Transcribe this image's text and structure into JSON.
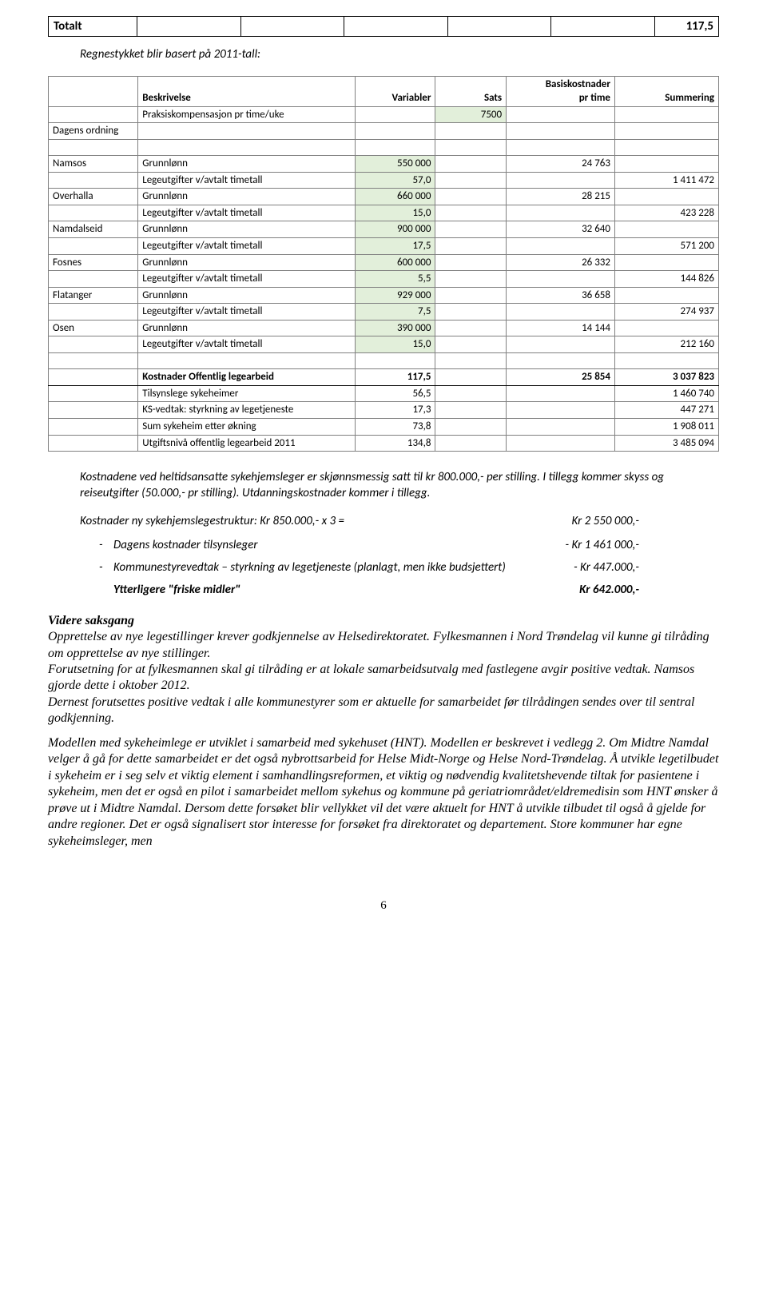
{
  "totalt": {
    "label": "Totalt",
    "value": "117,5"
  },
  "intro": "Regnestykket blir basert på 2011-tall:",
  "calc_table": {
    "headers": [
      "",
      "Beskrivelse",
      "Variabler",
      "Sats",
      "Basiskostnader pr time",
      "Summering"
    ],
    "col_widths": [
      "95px",
      "230px",
      "85px",
      "75px",
      "115px",
      "110px"
    ],
    "rows": [
      {
        "c": [
          "",
          "Praksiskompensasjon pr time/uke",
          "",
          "7500",
          "",
          ""
        ],
        "hl": [
          false,
          false,
          false,
          true,
          false,
          false
        ]
      },
      {
        "c": [
          "Dagens ordning",
          "",
          "",
          "",
          "",
          ""
        ]
      },
      {
        "spacer": true
      },
      {
        "c": [
          "Namsos",
          "Grunnlønn",
          "550 000",
          "",
          "24 763",
          ""
        ],
        "hl": [
          false,
          false,
          true,
          false,
          false,
          false
        ]
      },
      {
        "c": [
          "",
          "Legeutgifter v/avtalt timetall",
          "57,0",
          "",
          "",
          "1 411 472"
        ],
        "hl": [
          false,
          false,
          true,
          false,
          false,
          false
        ]
      },
      {
        "c": [
          "Overhalla",
          "Grunnlønn",
          "660 000",
          "",
          "28 215",
          ""
        ],
        "hl": [
          false,
          false,
          true,
          false,
          false,
          false
        ]
      },
      {
        "c": [
          "",
          "Legeutgifter v/avtalt timetall",
          "15,0",
          "",
          "",
          "423 228"
        ],
        "hl": [
          false,
          false,
          true,
          false,
          false,
          false
        ]
      },
      {
        "c": [
          "Namdalseid",
          "Grunnlønn",
          "900 000",
          "",
          "32 640",
          ""
        ],
        "hl": [
          false,
          false,
          true,
          false,
          false,
          false
        ]
      },
      {
        "c": [
          "",
          "Legeutgifter v/avtalt timetall",
          "17,5",
          "",
          "",
          "571 200"
        ],
        "hl": [
          false,
          false,
          true,
          false,
          false,
          false
        ]
      },
      {
        "c": [
          "Fosnes",
          "Grunnlønn",
          "600 000",
          "",
          "26 332",
          ""
        ],
        "hl": [
          false,
          false,
          true,
          false,
          false,
          false
        ]
      },
      {
        "c": [
          "",
          "Legeutgifter v/avtalt timetall",
          "5,5",
          "",
          "",
          "144 826"
        ],
        "hl": [
          false,
          false,
          true,
          false,
          false,
          false
        ]
      },
      {
        "c": [
          "Flatanger",
          "Grunnlønn",
          "929 000",
          "",
          "36 658",
          ""
        ],
        "hl": [
          false,
          false,
          true,
          false,
          false,
          false
        ]
      },
      {
        "c": [
          "",
          "Legeutgifter v/avtalt timetall",
          "7,5",
          "",
          "",
          "274 937"
        ],
        "hl": [
          false,
          false,
          true,
          false,
          false,
          false
        ]
      },
      {
        "c": [
          "Osen",
          "Grunnlønn",
          "390 000",
          "",
          "14 144",
          ""
        ],
        "hl": [
          false,
          false,
          true,
          false,
          false,
          false
        ]
      },
      {
        "c": [
          "",
          "Legeutgifter v/avtalt timetall",
          "15,0",
          "",
          "",
          "212 160"
        ],
        "hl": [
          false,
          false,
          true,
          false,
          false,
          false
        ]
      },
      {
        "spacer": true
      },
      {
        "c": [
          "",
          "Kostnader Offentlig legearbeid",
          "117,5",
          "",
          "25 854",
          "3 037 823"
        ],
        "bold": true
      },
      {
        "c": [
          "",
          "Tilsynslege sykeheimer",
          "56,5",
          "",
          "",
          "1 460 740"
        ]
      },
      {
        "c": [
          "",
          "KS-vedtak: styrkning av legetjeneste",
          "17,3",
          "",
          "",
          "447 271"
        ]
      },
      {
        "c": [
          "",
          "Sum sykeheim etter økning",
          "73,8",
          "",
          "",
          "1 908 011"
        ]
      },
      {
        "c": [
          "",
          "Utgiftsnivå offentlig legearbeid 2011",
          "134,8",
          "",
          "",
          "3 485 094"
        ]
      }
    ]
  },
  "narrative1": {
    "p1": "Kostnadene ved heltidsansatte sykehjemsleger er skjønnsmessig satt til kr 800.000,- per stilling. I tillegg kommer skyss og reiseutgifter (50.000,- pr stilling). Utdanningskostnader kommer i tillegg.",
    "cost_title_l": "Kostnader ny sykehjemslegestruktur: Kr 850.000,- x 3     =",
    "cost_title_r": "Kr 2 550 000,-",
    "items": [
      {
        "txt": "Dagens kostnader tilsynsleger",
        "amt": "- Kr 1 461 000,-"
      },
      {
        "txt": "Kommunestyrevedtak – styrkning av legetjeneste (planlagt, men ikke budsjettert)",
        "amt": "- Kr 447.000,-"
      }
    ],
    "final_l": "Ytterligere \"friske midler\"",
    "final_r": "Kr 642.000,-"
  },
  "prose": {
    "hdr": "Videre saksgang",
    "p1": "Opprettelse av nye legestillinger krever godkjennelse av Helsedirektoratet. Fylkesmannen i Nord Trøndelag vil kunne gi tilråding om opprettelse av nye stillinger.",
    "p2": "Forutsetning for at fylkesmannen skal gi tilråding er at lokale samarbeidsutvalg med fastlegene avgir positive vedtak. Namsos gjorde dette i oktober 2012.",
    "p3": "Dernest forutsettes positive vedtak i alle kommunestyrer som er aktuelle for samarbeidet før tilrådingen sendes over til sentral godkjenning.",
    "p4": "Modellen med sykeheimlege er utviklet i samarbeid med sykehuset (HNT). Modellen er beskrevet i vedlegg 2. Om Midtre Namdal velger å gå for dette samarbeidet er det også nybrottsarbeid for Helse Midt-Norge og Helse Nord-Trøndelag. Å utvikle legetilbudet i sykeheim er i seg selv et viktig element i samhandlingsreformen, et viktig og nødvendig kvalitetshevende tiltak for pasientene i sykeheim, men det er også en pilot i samarbeidet mellom sykehus og kommune på geriatriområdet/eldremedisin som HNT ønsker å prøve ut i Midtre Namdal. Dersom dette forsøket blir vellykket vil det være aktuelt for HNT å utvikle tilbudet til også å gjelde for andre regioner. Det er også signalisert stor interesse for forsøket fra direktoratet og departement. Store kommuner har egne sykeheimsleger, men"
  },
  "page_number": "6"
}
